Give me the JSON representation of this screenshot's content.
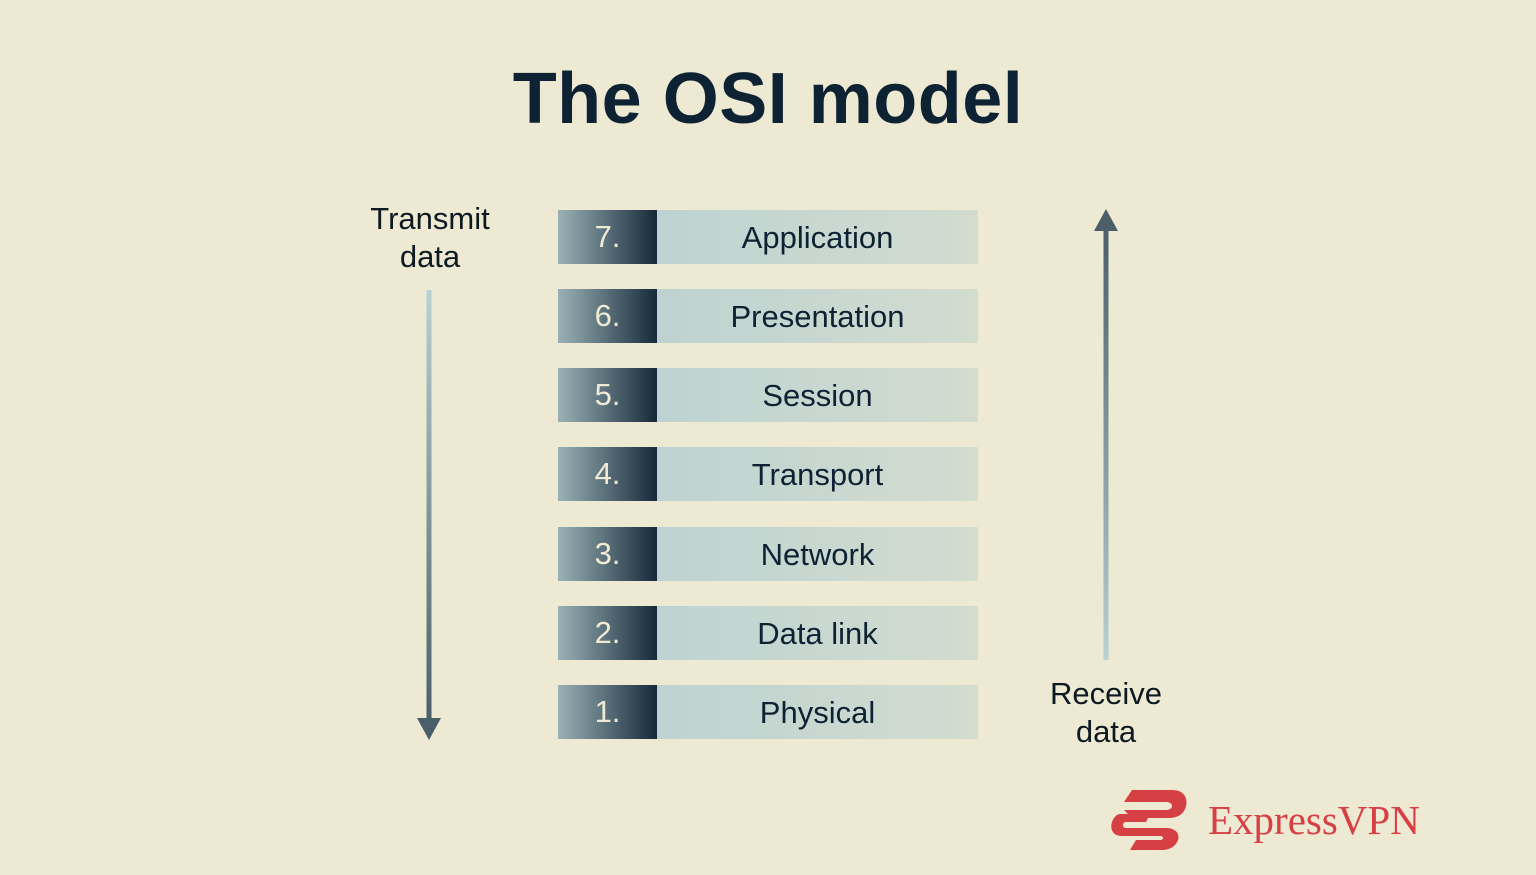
{
  "title": "The OSI model",
  "transmit_label": [
    "Transmit",
    "data"
  ],
  "receive_label": [
    "Receive",
    "data"
  ],
  "layers": [
    {
      "number": "7.",
      "name": "Application"
    },
    {
      "number": "6.",
      "name": "Presentation"
    },
    {
      "number": "5.",
      "name": "Session"
    },
    {
      "number": "4.",
      "name": "Transport"
    },
    {
      "number": "3.",
      "name": "Network"
    },
    {
      "number": "2.",
      "name": "Data link"
    },
    {
      "number": "1.",
      "name": "Physical"
    }
  ],
  "brand": {
    "name": "ExpressVPN",
    "color": "#d63f44"
  },
  "colors": {
    "background": "#eee9d2",
    "title": "#0d2233",
    "arrow_dark": "#4a5f6a",
    "arrow_light": "#b8d1d2"
  }
}
